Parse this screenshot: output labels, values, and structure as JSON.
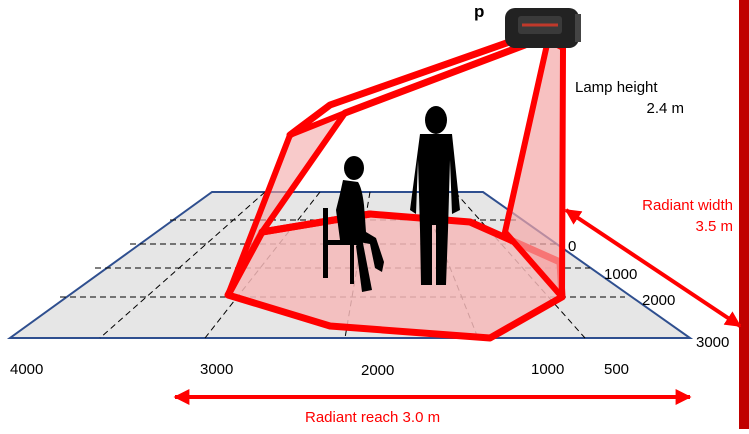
{
  "header": {
    "title_fragment": "p"
  },
  "lamp": {
    "height_label": "Lamp height",
    "height_value": "2.4 m"
  },
  "radiant_width": {
    "label": "Radiant width",
    "value": "3.5 m"
  },
  "radiant_reach": {
    "label": "Radiant reach 3.0 m"
  },
  "depth_ticks": [
    "0",
    "1000",
    "2000",
    "3000"
  ],
  "width_ticks": [
    "4000",
    "3000",
    "2000",
    "1000",
    "500"
  ],
  "colors": {
    "accent": "#ff0000",
    "heat_fill": "#f4a6a6",
    "floor": "#e6e6e6",
    "floor_border": "#2f4f8f",
    "side_bar": "#c00000"
  }
}
